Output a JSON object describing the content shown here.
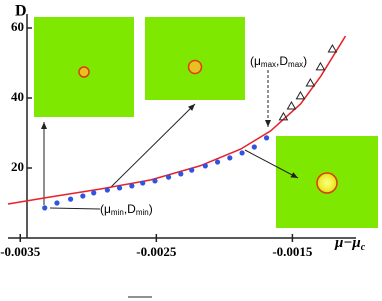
{
  "chart_data": {
    "type": "scatter",
    "y_label": "D",
    "x_label_parts": [
      "μ−μ",
      "c"
    ],
    "xlim": [
      -0.00359,
      -0.00104
    ],
    "ylim": [
      0,
      64
    ],
    "xticks": [
      -0.0035,
      -0.0025,
      -0.0015
    ],
    "yticks": [
      20,
      40,
      60
    ],
    "series": [
      {
        "kind": "curve",
        "color": "#e8202a",
        "x": [
          -0.00359,
          -0.00328,
          -0.00291,
          -0.00254,
          -0.00218,
          -0.00188,
          -0.00166,
          -0.00144,
          -0.00129,
          -0.00111
        ],
        "values": [
          9.7,
          11.7,
          14.0,
          16.6,
          20.6,
          25.4,
          30.6,
          38.3,
          46.3,
          57.7
        ]
      },
      {
        "kind": "dot",
        "color": "#2f54e0",
        "x": [
          -0.00332,
          -0.00323,
          -0.00313,
          -0.00304,
          -0.00296,
          -0.00286,
          -0.00277,
          -0.00268,
          -0.0026,
          -0.00251,
          -0.00241,
          -0.00232,
          -0.00224,
          -0.00214,
          -0.00205,
          -0.00196,
          -0.00187,
          -0.00178,
          -0.00169
        ],
        "values": [
          8.6,
          10,
          11.1,
          12,
          12.9,
          13.7,
          14.3,
          14.9,
          15.7,
          16.3,
          17.4,
          18.3,
          19.4,
          20.6,
          21.7,
          22.9,
          24.3,
          26,
          28.6
        ]
      },
      {
        "kind": "triangle",
        "color": "#222222",
        "x": [
          -0.001566,
          -0.001507,
          -0.001441,
          -0.001368,
          -0.001294,
          -0.001206
        ],
        "values": [
          34.6,
          37.7,
          40.6,
          44.3,
          48.9,
          54
        ]
      }
    ],
    "annotations": [
      {
        "parts": [
          "(μ",
          "min",
          ",D",
          "min",
          ")"
        ]
      },
      {
        "parts": [
          "(μ",
          "max",
          ",D",
          "max",
          ")"
        ]
      }
    ]
  }
}
